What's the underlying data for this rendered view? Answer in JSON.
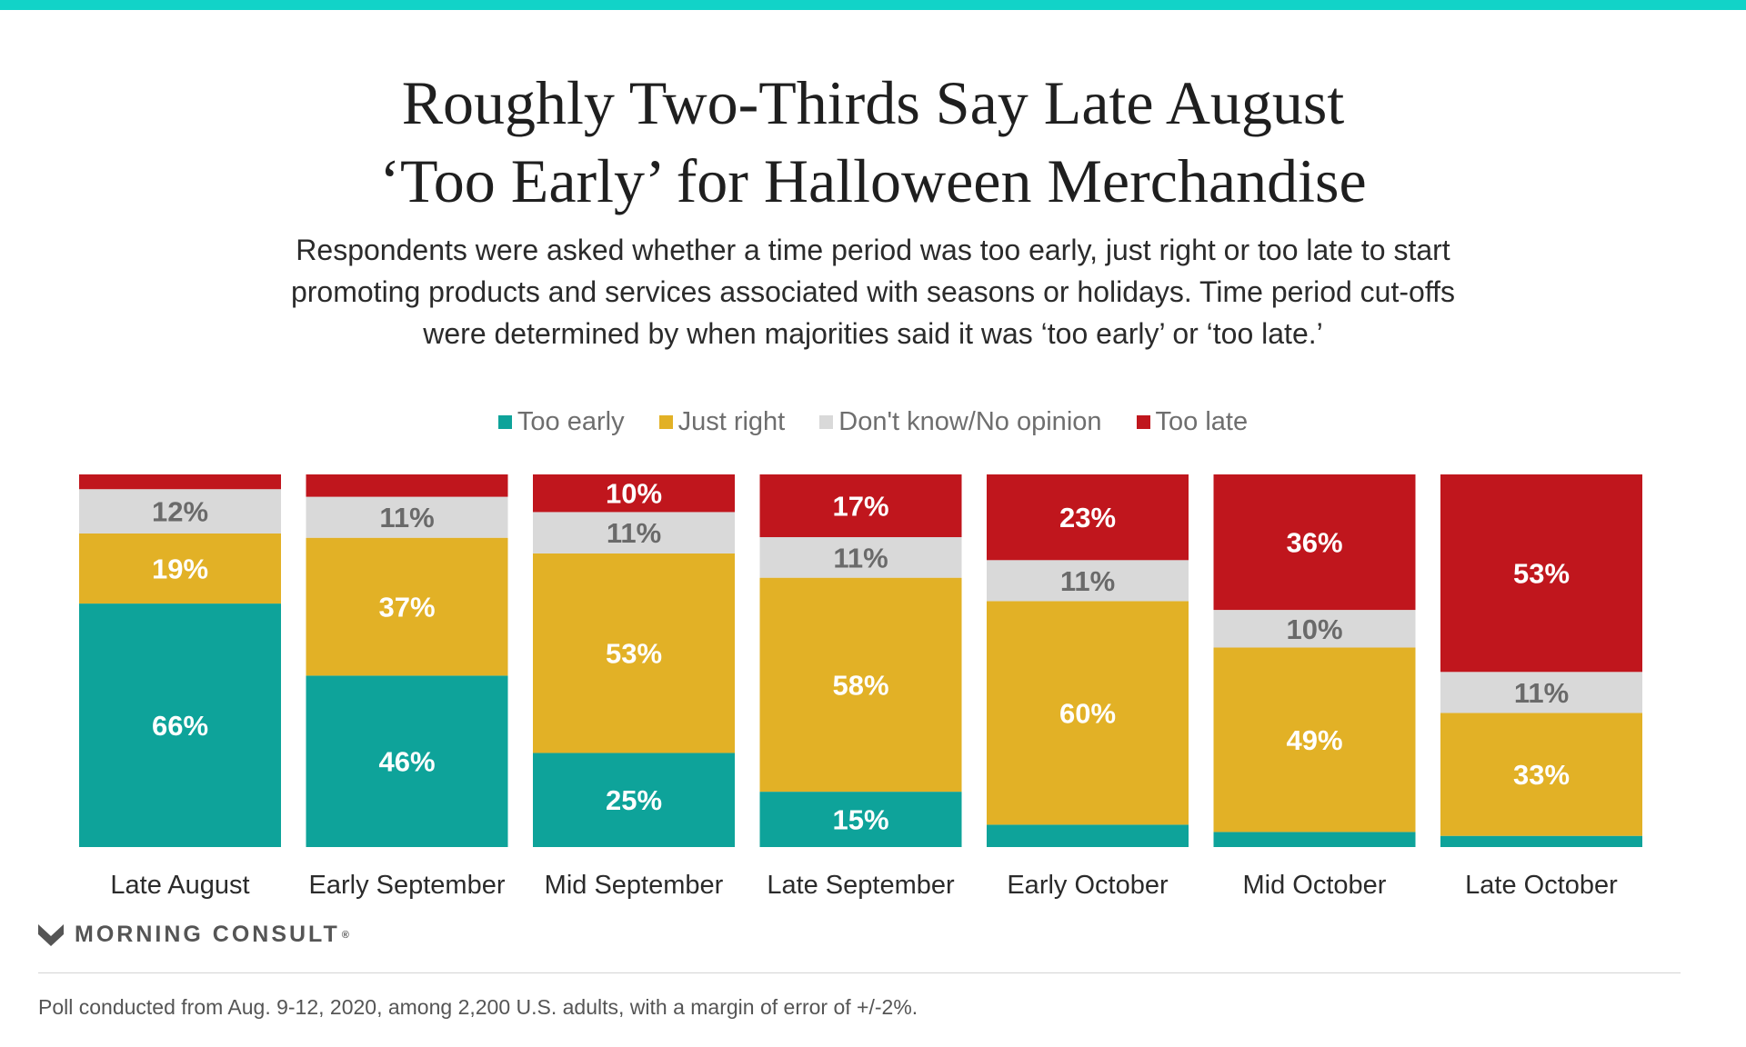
{
  "title_lines": [
    "Roughly Two-Thirds Say Late August",
    "‘Too Early’ for Halloween Merchandise"
  ],
  "subtitle_lines": [
    "Respondents were asked whether a time period was too early, just right or too late to start",
    "promoting products and services associated with seasons or holidays. Time period cut-offs",
    "were determined by when majorities said it was ‘too early’ or ‘too late.’"
  ],
  "colors": {
    "too_early": "#0ea39a",
    "just_right": "#e2b126",
    "dont_know": "#d9d9d9",
    "too_late": "#c0161d",
    "top_rule": "#12d3c8"
  },
  "chart_data": {
    "type": "bar",
    "stacked": true,
    "orientation": "vertical",
    "legend_position": "top",
    "categories": [
      "Late August",
      "Early September",
      "Mid September",
      "Late September",
      "Early October",
      "Mid October",
      "Late October"
    ],
    "series": [
      {
        "name": "Too early",
        "color": "#0ea39a",
        "values": [
          66,
          46,
          25,
          15,
          6,
          4,
          3
        ]
      },
      {
        "name": "Just right",
        "color": "#e2b126",
        "values": [
          19,
          37,
          53,
          58,
          60,
          49,
          33
        ]
      },
      {
        "name": "Don't know/No opinion",
        "color": "#d9d9d9",
        "values": [
          12,
          11,
          11,
          11,
          11,
          10,
          11
        ]
      },
      {
        "name": "Too late",
        "color": "#c0161d",
        "values": [
          4,
          6,
          10,
          17,
          23,
          36,
          53
        ]
      }
    ],
    "labels": [
      [
        "66%",
        "46%",
        "25%",
        "15%",
        "",
        "",
        ""
      ],
      [
        "19%",
        "37%",
        "53%",
        "58%",
        "60%",
        "49%",
        "33%"
      ],
      [
        "12%",
        "11%",
        "11%",
        "11%",
        "11%",
        "10%",
        "11%"
      ],
      [
        "",
        "",
        "10%",
        "17%",
        "23%",
        "36%",
        "53%"
      ]
    ],
    "ylim": [
      0,
      100
    ],
    "grid": false
  },
  "footer": {
    "brand": "MORNING CONSULT",
    "registered": "®",
    "note": "Poll conducted from Aug. 9-12, 2020, among 2,200 U.S. adults, with a margin of error of +/-2%."
  }
}
